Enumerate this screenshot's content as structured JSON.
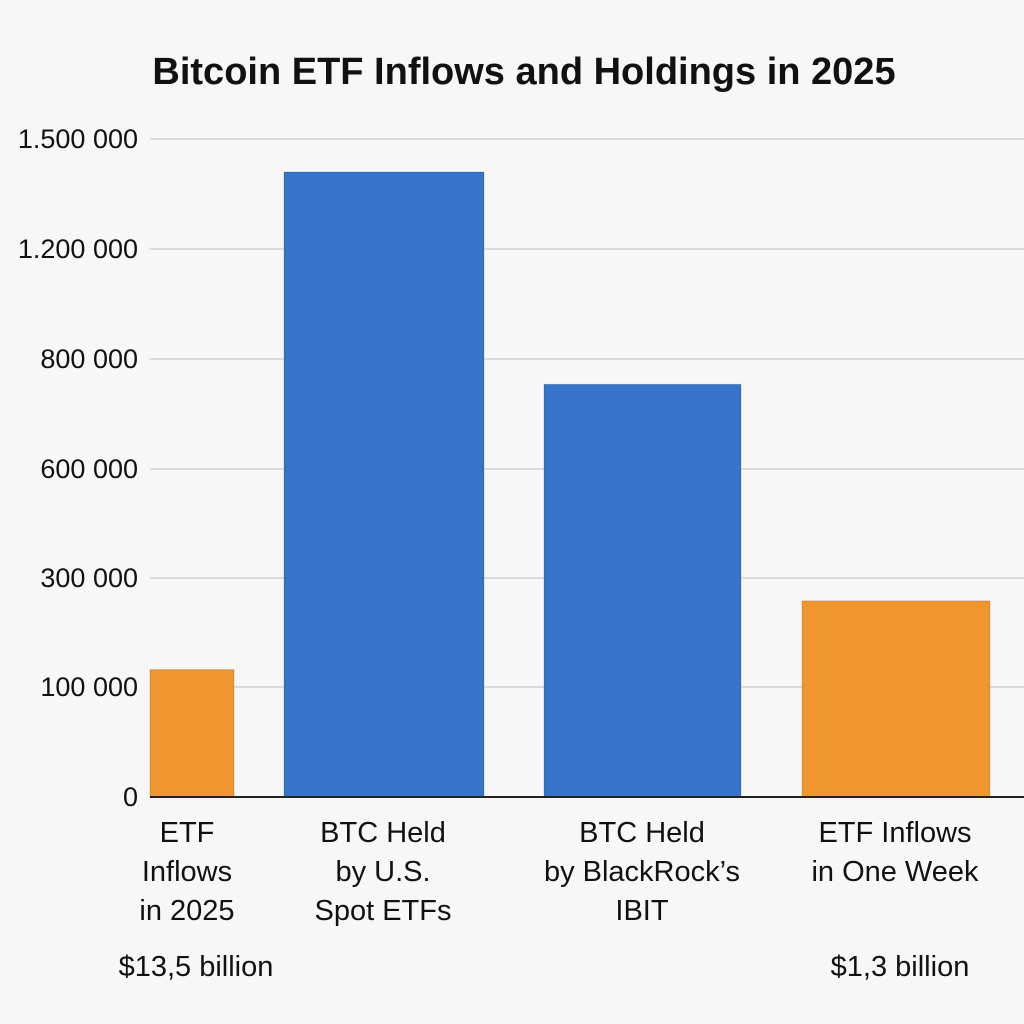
{
  "chart_data": {
    "type": "bar",
    "title": "Bitcoin ETF Inflows and Holdings in 2025",
    "xlabel": "",
    "ylabel": "",
    "y_ticks": [
      "0",
      "100 000",
      "300 000",
      "600 000",
      "800 000",
      "1.200 000",
      "1.500 000"
    ],
    "categories": [
      {
        "lines": [
          "ETF",
          "Inflows",
          "in 2025"
        ],
        "note": "$13,5 billion"
      },
      {
        "lines": [
          "BTC Held",
          "by U.S.",
          "Spot ETFs"
        ],
        "note": ""
      },
      {
        "lines": [
          "BTC Held",
          "by BlackRock’s",
          "IBIT"
        ],
        "note": ""
      },
      {
        "lines": [
          "ETF Inflows",
          "in One Week"
        ],
        "note": "$1,3 billion"
      }
    ],
    "values": [
      132000,
      1410000,
      754000,
      258000
    ],
    "bar_colors": [
      "#f0962f",
      "#3574c8",
      "#3574c8",
      "#f0962f"
    ],
    "grid": true
  }
}
